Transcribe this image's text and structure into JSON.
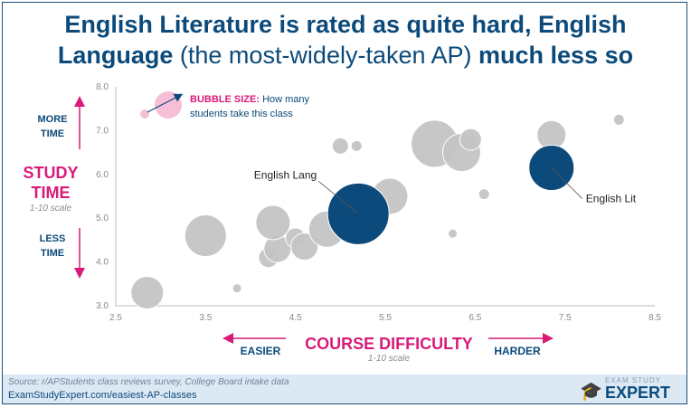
{
  "title": {
    "line1": "English Literature is rated as quite hard, English",
    "line2_bold1": "Language",
    "line2_normal": " (the most-widely-taken AP) ",
    "line2_bold2": "much less so"
  },
  "labels": {
    "more": "MORE",
    "time": "TIME",
    "less": "LESS",
    "study": "STUDY",
    "study_time": "TIME",
    "scale_y": "1-10 scale",
    "easier": "EASIER",
    "harder": "HARDER",
    "x_title": "COURSE DIFFICULTY",
    "scale_x": "1-10 scale",
    "bubble_size_bold": "BUBBLE SIZE:",
    "bubble_size_rest1": "How many",
    "bubble_size_rest2": "students take this class"
  },
  "footer": {
    "source": "Source: r/APStudents class reviews survey, College Board intake data",
    "site": "ExamStudyExpert.com/easiest-AP-classes",
    "logo_small": "EXAM STUDY",
    "logo_big": "EXPERT"
  },
  "colors": {
    "navy": "#0b4a7a",
    "pink": "#d81b78",
    "grey_bubble": "#c4c4c4",
    "highlight": "#0b4a7a",
    "legend_bubble": "#f6bfd8"
  },
  "chart_data": {
    "type": "scatter",
    "xlabel": "COURSE DIFFICULTY",
    "ylabel": "STUDY TIME",
    "xlim": [
      2.5,
      8.5
    ],
    "ylim": [
      3.0,
      8.0
    ],
    "x_ticks": [
      "2.5",
      "3.5",
      "4.5",
      "5.5",
      "6.5",
      "7.5",
      "8.5"
    ],
    "y_ticks": [
      "3.0",
      "4.0",
      "5.0",
      "6.0",
      "7.0",
      "8.0"
    ],
    "grid": false,
    "series": [
      {
        "points": [
          {
            "x": 2.85,
            "y": 3.3,
            "size": 18
          },
          {
            "x": 3.85,
            "y": 3.4,
            "size": 5
          },
          {
            "x": 3.5,
            "y": 4.6,
            "size": 23
          },
          {
            "x": 4.2,
            "y": 4.1,
            "size": 11
          },
          {
            "x": 4.3,
            "y": 4.3,
            "size": 15
          },
          {
            "x": 4.25,
            "y": 4.9,
            "size": 19
          },
          {
            "x": 4.5,
            "y": 4.55,
            "size": 11
          },
          {
            "x": 4.6,
            "y": 4.35,
            "size": 15
          },
          {
            "x": 4.85,
            "y": 4.75,
            "size": 20
          },
          {
            "x": 5.1,
            "y": 4.65,
            "size": 11
          },
          {
            "x": 5.55,
            "y": 5.5,
            "size": 20
          },
          {
            "x": 5.0,
            "y": 6.65,
            "size": 9
          },
          {
            "x": 5.18,
            "y": 6.65,
            "size": 6
          },
          {
            "x": 6.05,
            "y": 6.7,
            "size": 26
          },
          {
            "x": 6.35,
            "y": 6.5,
            "size": 21
          },
          {
            "x": 6.45,
            "y": 6.8,
            "size": 12
          },
          {
            "x": 6.25,
            "y": 4.65,
            "size": 5
          },
          {
            "x": 6.6,
            "y": 5.55,
            "size": 6
          },
          {
            "x": 7.35,
            "y": 6.9,
            "size": 16
          },
          {
            "x": 8.1,
            "y": 7.25,
            "size": 6
          }
        ]
      },
      {
        "points": [
          {
            "x": 5.2,
            "y": 5.1,
            "size": 34,
            "label": "English Lang"
          },
          {
            "x": 7.35,
            "y": 6.15,
            "size": 25,
            "label": "English Lit"
          }
        ]
      }
    ]
  }
}
